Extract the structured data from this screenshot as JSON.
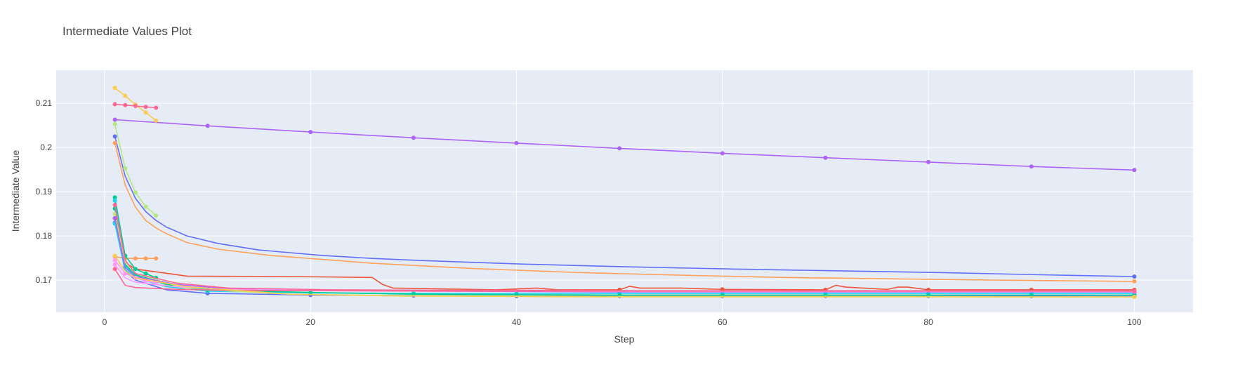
{
  "chart_data": {
    "type": "line",
    "title": "Intermediate Values Plot",
    "xlabel": "Step",
    "ylabel": "Intermediate Value",
    "xlim": [
      -4.7,
      105.7
    ],
    "ylim": [
      0.1627,
      0.2175
    ],
    "xticks": [
      0,
      20,
      40,
      60,
      80,
      100
    ],
    "xtick_labels": [
      "0",
      "20",
      "40",
      "60",
      "80",
      "100"
    ],
    "yticks": [
      0.17,
      0.18,
      0.19,
      0.2,
      0.21
    ],
    "ytick_labels": [
      "0.17",
      "0.18",
      "0.19",
      "0.2",
      "0.21"
    ],
    "grid": true,
    "legend": "none",
    "plot_bg": "#e5ecf6",
    "grid_color": "#ffffff",
    "series": [
      {
        "color": "#ab63fa",
        "marker_every": 10,
        "x": [
          1,
          10,
          20,
          30,
          40,
          50,
          60,
          70,
          80,
          90,
          100
        ],
        "y": [
          0.2063,
          0.2049,
          0.2035,
          0.2022,
          0.201,
          0.1998,
          0.1987,
          0.1977,
          0.1967,
          0.1957,
          0.1949
        ]
      },
      {
        "color": "#636efa",
        "marker_every": 10,
        "x": [
          1,
          2,
          3,
          4,
          5,
          6,
          8,
          11,
          15,
          21,
          26,
          31,
          41,
          51,
          61,
          71,
          81,
          91,
          100
        ],
        "y": [
          0.2025,
          0.1935,
          0.1885,
          0.1855,
          0.1835,
          0.182,
          0.18,
          0.1783,
          0.1768,
          0.1756,
          0.1749,
          0.1744,
          0.1736,
          0.173,
          0.1725,
          0.1721,
          0.1717,
          0.1712,
          0.1708
        ]
      },
      {
        "color": "#ffa15a",
        "marker_every": 10,
        "x": [
          1,
          2,
          3,
          4,
          5,
          6,
          8,
          11,
          16,
          26,
          36,
          46,
          56,
          66,
          76,
          86,
          96,
          100
        ],
        "y": [
          0.201,
          0.1915,
          0.1865,
          0.1835,
          0.1818,
          0.1805,
          0.1785,
          0.177,
          0.1756,
          0.1738,
          0.1726,
          0.1717,
          0.1711,
          0.1706,
          0.1703,
          0.17,
          0.1698,
          0.1697
        ]
      },
      {
        "color": "#b6e880",
        "marker_every": 1,
        "x": [
          1,
          2,
          3,
          4,
          5
        ],
        "y": [
          0.2053,
          0.1953,
          0.1898,
          0.1866,
          0.1846
        ]
      },
      {
        "color": "#fecb52",
        "marker_every": 1,
        "x": [
          1,
          2,
          3,
          4,
          5
        ],
        "y": [
          0.2135,
          0.2117,
          0.2097,
          0.2079,
          0.2061
        ]
      },
      {
        "color": "#ff6692",
        "marker_every": 1,
        "x": [
          1,
          2,
          3,
          4,
          5
        ],
        "y": [
          0.2098,
          0.2096,
          0.2094,
          0.2092,
          0.209
        ]
      },
      {
        "color": "#ffa15a",
        "marker_every": 1,
        "x": [
          1,
          2,
          3,
          4,
          5
        ],
        "y": [
          0.1753,
          0.1749,
          0.1749,
          0.1749,
          0.1749
        ]
      },
      {
        "color": "#ef553b",
        "marker_every": 10,
        "x": [
          1,
          2,
          3,
          8,
          18,
          26,
          27,
          28,
          38,
          42,
          44,
          50,
          51,
          52,
          56,
          60,
          70,
          71,
          72,
          76,
          77,
          78,
          80,
          90,
          100
        ],
        "y": [
          0.184,
          0.174,
          0.1725,
          0.1709,
          0.1708,
          0.1706,
          0.169,
          0.1682,
          0.1678,
          0.1682,
          0.1678,
          0.1678,
          0.1686,
          0.1682,
          0.1682,
          0.1679,
          0.1678,
          0.1688,
          0.1684,
          0.1679,
          0.1684,
          0.1684,
          0.1678,
          0.1678,
          0.1678
        ]
      },
      {
        "color": "#00cc96",
        "marker_every": 1,
        "x": [
          1,
          2,
          3,
          4,
          5
        ],
        "y": [
          0.1887,
          0.1755,
          0.1725,
          0.1715,
          0.1705
        ]
      },
      {
        "color": "#19d3f3",
        "marker_every": 1,
        "x": [
          1,
          2,
          3,
          4,
          5
        ],
        "y": [
          0.188,
          0.173,
          0.1712,
          0.1705,
          0.17
        ]
      },
      {
        "color": "#636efa",
        "marker_every": 10,
        "x": [
          1,
          2,
          3,
          6,
          10,
          20,
          30,
          40,
          50,
          60,
          70,
          80,
          90,
          100
        ],
        "y": [
          0.183,
          0.172,
          0.17,
          0.1678,
          0.167,
          0.1666,
          0.1665,
          0.1664,
          0.1664,
          0.1664,
          0.1664,
          0.1664,
          0.1664,
          0.1663
        ]
      },
      {
        "color": "#19d3f3",
        "marker_every": 10,
        "x": [
          1,
          2,
          3,
          6,
          10,
          20,
          30,
          40,
          50,
          60,
          70,
          80,
          90,
          100
        ],
        "y": [
          0.1828,
          0.1723,
          0.1705,
          0.1685,
          0.1675,
          0.1671,
          0.167,
          0.167,
          0.167,
          0.167,
          0.167,
          0.167,
          0.167,
          0.167
        ]
      },
      {
        "color": "#00cc96",
        "marker_every": 10,
        "x": [
          1,
          2,
          3,
          6,
          10,
          20,
          30,
          40,
          50,
          60,
          70,
          80,
          90,
          100
        ],
        "y": [
          0.1862,
          0.1735,
          0.1712,
          0.169,
          0.1678,
          0.1672,
          0.1668,
          0.1667,
          0.1666,
          0.1666,
          0.1666,
          0.1666,
          0.1666,
          0.1666
        ]
      },
      {
        "color": "#b6e880",
        "marker_every": 10,
        "x": [
          1,
          2,
          3,
          8,
          18,
          28,
          38,
          48,
          58,
          68,
          78,
          88,
          98,
          100
        ],
        "y": [
          0.185,
          0.174,
          0.1715,
          0.168,
          0.1668,
          0.1665,
          0.1664,
          0.1663,
          0.1663,
          0.1663,
          0.1663,
          0.1662,
          0.1662,
          0.1662
        ]
      },
      {
        "color": "#ab63fa",
        "marker_every": 10,
        "x": [
          1,
          2,
          3,
          7,
          12,
          22,
          32,
          42,
          52,
          62,
          72,
          82,
          92,
          100
        ],
        "y": [
          0.184,
          0.1728,
          0.1708,
          0.169,
          0.168,
          0.1676,
          0.1675,
          0.1674,
          0.1673,
          0.1673,
          0.1673,
          0.1673,
          0.1673,
          0.1673
        ]
      },
      {
        "color": "#ff6692",
        "marker_every": 10,
        "x": [
          1,
          2,
          3,
          7,
          12,
          22,
          32,
          42,
          52,
          62,
          72,
          82,
          92,
          100
        ],
        "y": [
          0.187,
          0.1745,
          0.1715,
          0.1693,
          0.1682,
          0.1678,
          0.1677,
          0.1677,
          0.1676,
          0.1676,
          0.1676,
          0.1676,
          0.1676,
          0.1676
        ]
      },
      {
        "color": "#ff97ff",
        "marker_every": 1,
        "x": [
          1,
          2,
          3,
          4,
          5
        ],
        "y": [
          0.1745,
          0.1715,
          0.1705,
          0.1698,
          0.1694
        ]
      },
      {
        "color": "#ff97ff",
        "marker_every": 10,
        "x": [
          1,
          2,
          3,
          7,
          12,
          22,
          32,
          42,
          52,
          62,
          72,
          82,
          92,
          100
        ],
        "y": [
          0.1735,
          0.1705,
          0.1695,
          0.1685,
          0.1679,
          0.1676,
          0.1675,
          0.1675,
          0.1674,
          0.1674,
          0.1674,
          0.1674,
          0.1674,
          0.1674
        ]
      },
      {
        "color": "#ff6692",
        "marker_every": 10,
        "x": [
          1,
          2,
          3,
          7,
          12,
          22,
          32,
          42,
          52,
          62,
          72,
          82,
          92,
          100
        ],
        "y": [
          0.1725,
          0.1688,
          0.1683,
          0.1679,
          0.1677,
          0.1676,
          0.1675,
          0.1675,
          0.1675,
          0.1675,
          0.1675,
          0.1675,
          0.1675,
          0.1675
        ]
      },
      {
        "color": "#fecb52",
        "marker_every": 10,
        "x": [
          1,
          2,
          3,
          8,
          18,
          28,
          38,
          48,
          58,
          68,
          78,
          88,
          98,
          100
        ],
        "y": [
          0.1755,
          0.172,
          0.1705,
          0.1685,
          0.1668,
          0.1664,
          0.1663,
          0.1662,
          0.1662,
          0.1662,
          0.1662,
          0.1662,
          0.1662,
          0.1662
        ]
      }
    ]
  }
}
